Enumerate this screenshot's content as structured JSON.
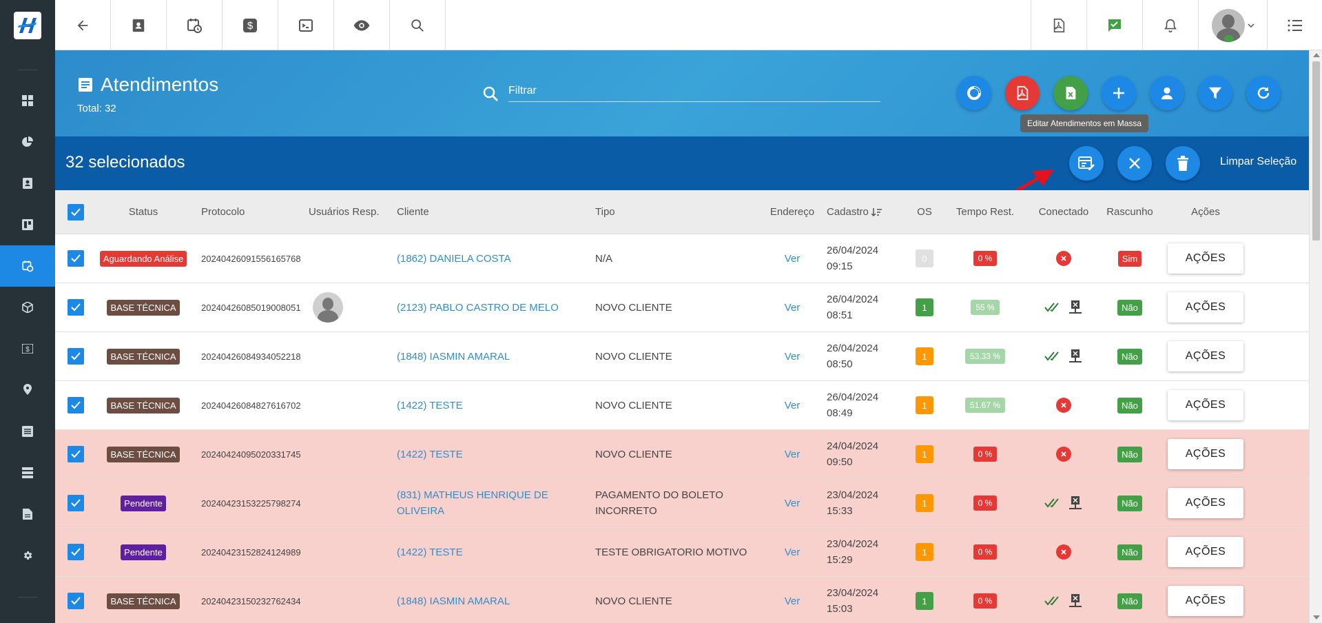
{
  "header": {
    "title": "Atendimentos",
    "total": "Total: 32",
    "filter_placeholder": "Filtrar",
    "tooltip": "Editar Atendimentos em Massa"
  },
  "selection": {
    "text": "32 selecionados",
    "clear": "Limpar Seleção"
  },
  "columns": [
    "Status",
    "Protocolo",
    "Usuários Resp.",
    "Cliente",
    "Tipo",
    "Endereço",
    "Cadastro",
    "OS",
    "Tempo Rest.",
    "Conectado",
    "Rascunho",
    "Ações"
  ],
  "rows": [
    {
      "status": "Aguardando Análise",
      "protocolo": "20240426091556165768",
      "cliente": "(1862) DANIELA COSTA",
      "tipo": "N/A",
      "endereco": "Ver",
      "data": "26/04/2024",
      "hora": "09:15",
      "os": "0",
      "tempo": "0 %",
      "rascunho": "Sim",
      "acoes": "AÇÕES"
    },
    {
      "status": "BASE TÉCNICA",
      "protocolo": "20240426085019008051",
      "cliente": "(2123) PABLO CASTRO DE MELO",
      "tipo": "NOVO CLIENTE",
      "endereco": "Ver",
      "data": "26/04/2024",
      "hora": "08:51",
      "os": "1",
      "tempo": "55 %",
      "rascunho": "Não",
      "acoes": "AÇÕES"
    },
    {
      "status": "BASE TÉCNICA",
      "protocolo": "20240426084934052218",
      "cliente": "(1848) IASMIN AMARAL",
      "tipo": "NOVO CLIENTE",
      "endereco": "Ver",
      "data": "26/04/2024",
      "hora": "08:50",
      "os": "1",
      "tempo": "53.33 %",
      "rascunho": "Não",
      "acoes": "AÇÕES"
    },
    {
      "status": "BASE TÉCNICA",
      "protocolo": "20240426084827616702",
      "cliente": "(1422) TESTE",
      "tipo": "NOVO CLIENTE",
      "endereco": "Ver",
      "data": "26/04/2024",
      "hora": "08:49",
      "os": "1",
      "tempo": "51.67 %",
      "rascunho": "Não",
      "acoes": "AÇÕES"
    },
    {
      "status": "BASE TÉCNICA",
      "protocolo": "20240424095020331745",
      "cliente": "(1422) TESTE",
      "tipo": "NOVO CLIENTE",
      "endereco": "Ver",
      "data": "24/04/2024",
      "hora": "09:50",
      "os": "1",
      "tempo": "0 %",
      "rascunho": "Não",
      "acoes": "AÇÕES"
    },
    {
      "status": "Pendente",
      "protocolo": "20240423153225798274",
      "cliente": "(831) MATHEUS HENRIQUE DE OLIVEIRA",
      "tipo": "PAGAMENTO DO BOLETO INCORRETO",
      "endereco": "Ver",
      "data": "23/04/2024",
      "hora": "15:33",
      "os": "1",
      "tempo": "0 %",
      "rascunho": "Não",
      "acoes": "AÇÕES"
    },
    {
      "status": "Pendente",
      "protocolo": "20240423152824124989",
      "cliente": "(1422) TESTE",
      "tipo": "TESTE OBRIGATORIO MOTIVO",
      "endereco": "Ver",
      "data": "23/04/2024",
      "hora": "15:29",
      "os": "1",
      "tempo": "0 %",
      "rascunho": "Não",
      "acoes": "AÇÕES"
    },
    {
      "status": "BASE TÉCNICA",
      "protocolo": "20240423150232762434",
      "cliente": "(1848) IASMIN AMARAL",
      "tipo": "NOVO CLIENTE",
      "endereco": "Ver",
      "data": "23/04/2024",
      "hora": "15:03",
      "os": "1",
      "tempo": "0 %",
      "rascunho": "Não",
      "acoes": "AÇÕES"
    }
  ]
}
